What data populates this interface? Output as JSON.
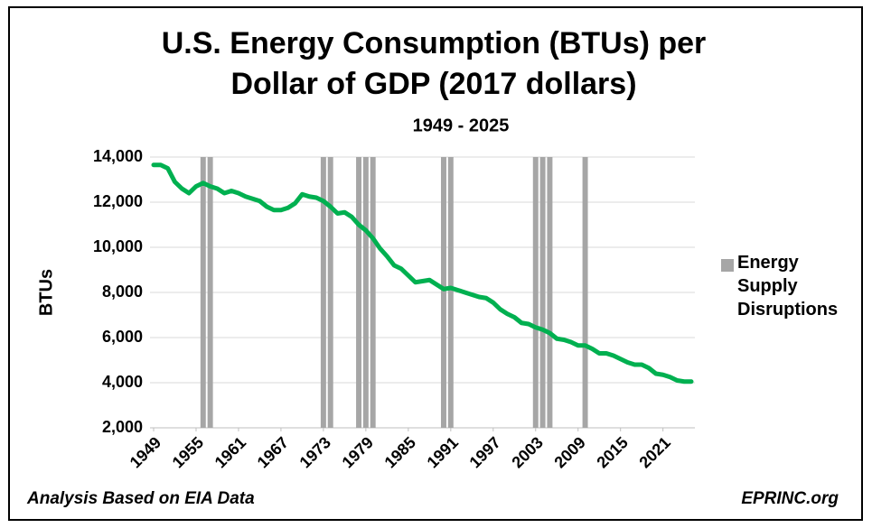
{
  "chart_data": {
    "type": "line",
    "title": [
      "U.S. Energy Consumption (BTUs) per",
      "Dollar of GDP (2017 dollars)"
    ],
    "subtitle": "1949 - 2025",
    "ylabel": "BTUs",
    "notes": [
      "Analysis Based on EIA  Data",
      "EPRINC.org"
    ],
    "x": [
      1949,
      1950,
      1951,
      1952,
      1953,
      1954,
      1955,
      1956,
      1957,
      1958,
      1959,
      1960,
      1961,
      1962,
      1963,
      1964,
      1965,
      1966,
      1967,
      1968,
      1969,
      1970,
      1971,
      1972,
      1973,
      1974,
      1975,
      1976,
      1977,
      1978,
      1979,
      1980,
      1981,
      1982,
      1983,
      1984,
      1985,
      1986,
      1987,
      1988,
      1989,
      1990,
      1991,
      1992,
      1993,
      1994,
      1995,
      1996,
      1997,
      1998,
      1999,
      2000,
      2001,
      2002,
      2003,
      2004,
      2005,
      2006,
      2007,
      2008,
      2009,
      2010,
      2011,
      2012,
      2013,
      2014,
      2015,
      2016,
      2017,
      2018,
      2019,
      2020,
      2021,
      2022,
      2023,
      2024,
      2025
    ],
    "series": [
      {
        "type": "line",
        "color": "#00b050",
        "values": [
          13650,
          13650,
          13500,
          12900,
          12600,
          12400,
          12700,
          12850,
          12700,
          12600,
          12400,
          12500,
          12400,
          12250,
          12150,
          12050,
          11800,
          11650,
          11650,
          11750,
          11950,
          12350,
          12250,
          12200,
          12050,
          11800,
          11500,
          11550,
          11350,
          11000,
          10750,
          10400,
          9950,
          9600,
          9200,
          9050,
          8750,
          8450,
          8500,
          8550,
          8350,
          8150,
          8200,
          8100,
          8000,
          7900,
          7800,
          7750,
          7550,
          7250,
          7050,
          6900,
          6650,
          6600,
          6450,
          6350,
          6200,
          5950,
          5900,
          5800,
          5650,
          5650,
          5500,
          5300,
          5300,
          5200,
          5050,
          4900,
          4800,
          4800,
          4650,
          4400,
          4350,
          4250,
          4100,
          4050,
          4050
        ]
      },
      {
        "type": "bar",
        "name": "Energy Supply Disruptions",
        "color": "#a6a6a6",
        "x": [
          1956,
          1957,
          1973,
          1974,
          1978,
          1979,
          1980,
          1990,
          1991,
          2003,
          2004,
          2005,
          2010
        ],
        "values": [
          14000,
          14000,
          14000,
          14000,
          14000,
          14000,
          14000,
          14000,
          14000,
          14000,
          14000,
          14000,
          14000
        ]
      }
    ],
    "xlim": [
      1949,
      2025
    ],
    "xticks": [
      1949,
      1955,
      1961,
      1967,
      1973,
      1979,
      1985,
      1991,
      1997,
      2003,
      2009,
      2015,
      2021
    ],
    "ylim": [
      2000,
      14000
    ],
    "yticks": [
      {
        "value": 2000,
        "label": "2,000"
      },
      {
        "value": 4000,
        "label": "4,000"
      },
      {
        "value": 6000,
        "label": "6,000"
      },
      {
        "value": 8000,
        "label": "8,000"
      },
      {
        "value": 10000,
        "label": "10,000"
      },
      {
        "value": 12000,
        "label": "12,000"
      },
      {
        "value": 14000,
        "label": "14,000"
      }
    ],
    "grid": true,
    "legend": "right"
  }
}
